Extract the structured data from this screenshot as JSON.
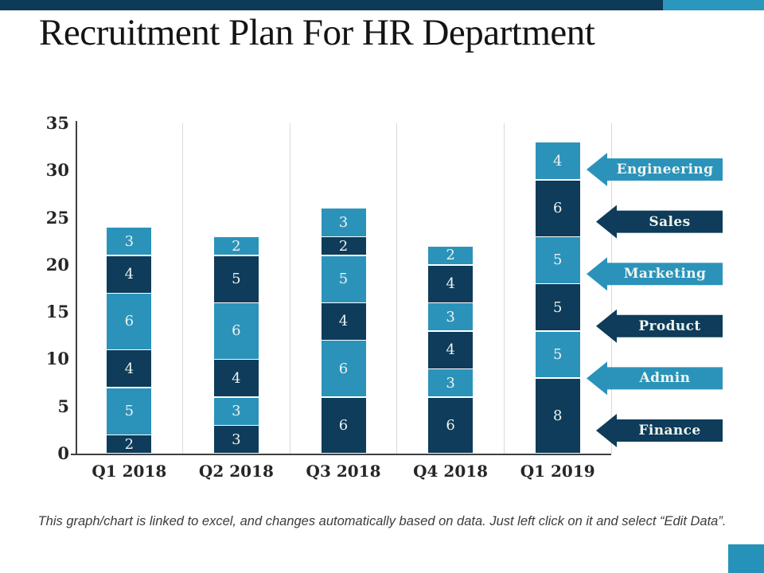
{
  "slide": {
    "title": "Recruitment Plan For HR Department",
    "footer": "This graph/chart is linked to excel, and changes automatically based on data. Just left click on it and select “Edit Data”."
  },
  "colors": {
    "dark": "#0e3c5a",
    "light": "#2b93ba",
    "top_bar": "#0d3a56",
    "top_accent": "#2b97bd",
    "corner_square": "#2792b9",
    "gridline": "#d9d9d9",
    "axis_line": "#3f3f3f",
    "title_text": "#141414",
    "axis_text": "#262626",
    "footer_text": "#3c3c3c",
    "segment_label_text": "#edf3f0",
    "legend_label_text": "#eef4ef"
  },
  "chart_data": {
    "type": "bar",
    "stacked": true,
    "title": "",
    "xlabel": "",
    "ylabel": "",
    "categories": [
      "Q1 2018",
      "Q2 2018",
      "Q3 2018",
      "Q4 2018",
      "Q1 2019"
    ],
    "series_order": "bottom-to-top",
    "series": [
      {
        "name": "Finance",
        "tone": "dark",
        "values": [
          2,
          3,
          6,
          6,
          8
        ]
      },
      {
        "name": "Admin",
        "tone": "light",
        "values": [
          5,
          3,
          6,
          3,
          5
        ]
      },
      {
        "name": "Product",
        "tone": "dark",
        "values": [
          4,
          4,
          4,
          4,
          5
        ]
      },
      {
        "name": "Marketing",
        "tone": "light",
        "values": [
          6,
          6,
          5,
          3,
          5
        ]
      },
      {
        "name": "Sales",
        "tone": "dark",
        "values": [
          4,
          5,
          2,
          4,
          6
        ]
      },
      {
        "name": "Engineering",
        "tone": "light",
        "values": [
          3,
          2,
          3,
          2,
          4
        ]
      }
    ],
    "totals": [
      24,
      23,
      26,
      22,
      33
    ],
    "ylim": [
      0,
      35
    ],
    "yticks": [
      0,
      5,
      10,
      15,
      20,
      25,
      30,
      35
    ],
    "value_labels_shown": true,
    "gridlines": "vertical category separators",
    "legend_position": "right, arrow shapes pointing left at Q1 2019 bar",
    "legend": [
      {
        "label": "Engineering",
        "tone": "light"
      },
      {
        "label": "Sales",
        "tone": "dark"
      },
      {
        "label": "Marketing",
        "tone": "light"
      },
      {
        "label": "Product",
        "tone": "dark"
      },
      {
        "label": "Admin",
        "tone": "light"
      },
      {
        "label": "Finance",
        "tone": "dark"
      }
    ]
  }
}
